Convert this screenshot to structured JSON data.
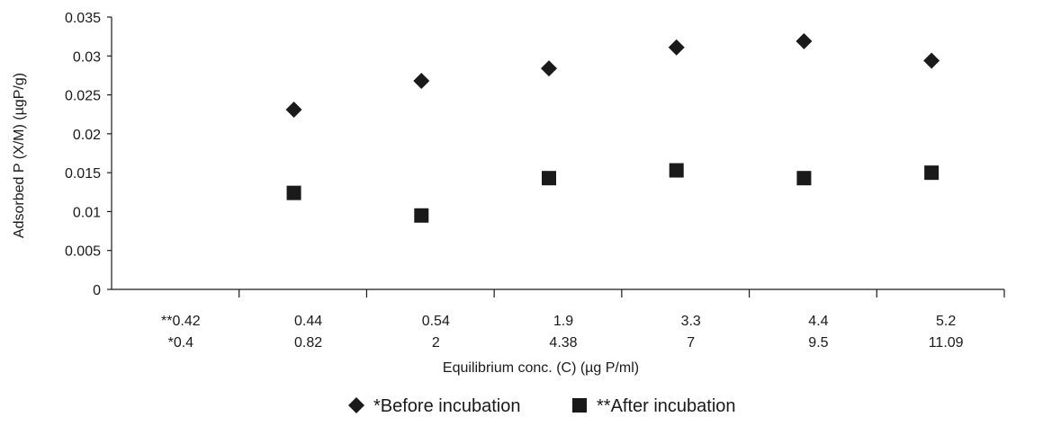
{
  "chart_data": {
    "type": "scatter",
    "title": "",
    "xlabel": "Equilibrium conc. (C) (µg P/ml)",
    "ylabel": "Adsorbed P (X/M) (µgP/g)",
    "ylim": [
      0,
      0.035
    ],
    "yticks": [
      "0",
      "0.005",
      "0.01",
      "0.015",
      "0.02",
      "0.025",
      "0.03",
      "0.035"
    ],
    "x_tick_rows": [
      [
        "**0.42",
        "0.44",
        "0.54",
        "1.9",
        "3.3",
        "4.4",
        "5.2"
      ],
      [
        "*0.4",
        "0.82",
        "2",
        "4.38",
        "7",
        "9.5",
        "11.09"
      ]
    ],
    "series": [
      {
        "name": "*Before incubation",
        "marker": "diamond",
        "color": "#1a1a1a",
        "x": [
          0.82,
          2,
          4.38,
          7,
          9.5,
          11.09
        ],
        "y": [
          0.0231,
          0.0268,
          0.0284,
          0.0311,
          0.0319,
          0.0294
        ]
      },
      {
        "name": "**After incubation",
        "marker": "square",
        "color": "#1a1a1a",
        "x": [
          0.44,
          0.54,
          1.9,
          3.3,
          4.4,
          5.2
        ],
        "y": [
          0.0124,
          0.0095,
          0.0143,
          0.0153,
          0.0143,
          0.015
        ]
      }
    ],
    "legend": "bottom",
    "grid": false
  }
}
